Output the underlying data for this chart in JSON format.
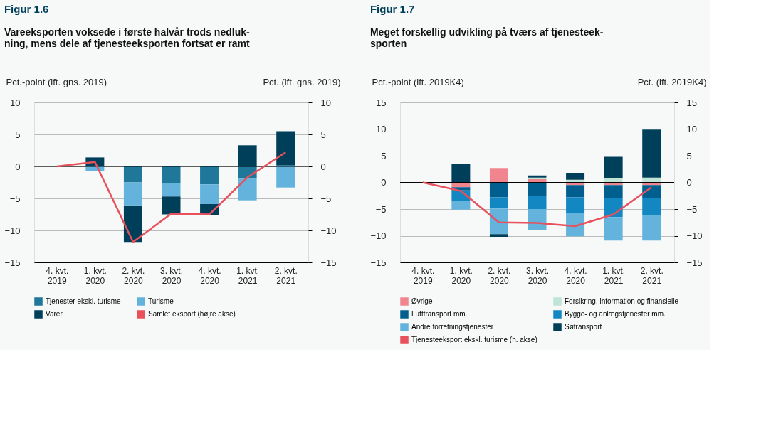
{
  "chart_data": [
    {
      "type": "bar",
      "stacked": true,
      "title": "Figur 1.6",
      "subtitle": "Vareeksporten voksede i første halvår trods nedluk-\nning, mens dele af tjenesteeksporten fortsat er ramt",
      "ylabel": "Pct.-point (ift. gns. 2019)",
      "y2label": "Pct. (ift. gns. 2019)",
      "categories": [
        "4. kvt. 2019",
        "1. kvt. 2020",
        "2. kvt. 2020",
        "3. kvt. 2020",
        "4. kvt. 2020",
        "1. kvt. 2021",
        "2. kvt. 2021"
      ],
      "ylim": [
        -15,
        10
      ],
      "yticks": [
        -15,
        -10,
        -5,
        0,
        5,
        10
      ],
      "y2lim": [
        -15,
        10
      ],
      "y2ticks": [
        -15,
        -10,
        -5,
        0,
        5,
        10
      ],
      "grid": "y",
      "legend": "bottom",
      "ref_lines": [
        {
          "axis": "y",
          "value": 0,
          "color": "#000000"
        }
      ],
      "series": [
        {
          "name": "Tjenester ekskl. turisme",
          "color": "#1f7799",
          "values": [
            null,
            null,
            -2.5,
            -2.6,
            -2.8,
            -1.9,
            0.2
          ]
        },
        {
          "name": "Turisme",
          "color": "#63b3dc",
          "values": [
            null,
            -0.7,
            -3.6,
            -2.1,
            -3.1,
            -3.4,
            -3.3
          ]
        },
        {
          "name": "Varer",
          "color": "#003f5a",
          "values": [
            null,
            1.4,
            -5.7,
            -2.8,
            -1.7,
            3.3,
            5.3
          ]
        },
        {
          "name": "Samlet eksport (højre akse)",
          "color": "#e8505b",
          "type": "line",
          "axis": "y2",
          "values": [
            0,
            0.7,
            -11.8,
            -7.4,
            -7.5,
            -1.7,
            2.2
          ]
        }
      ]
    },
    {
      "type": "bar",
      "stacked": true,
      "title": "Figur 1.7",
      "subtitle": "Meget forskellig udvikling på tværs af tjenesteek-\nsporten",
      "ylabel": "Pct.-point (ift. 2019K4)",
      "y2label": "Pct. (ift. 2019K4)",
      "categories": [
        "4. kvt. 2019",
        "1. kvt. 2020",
        "2. kvt. 2020",
        "3. kvt. 2020",
        "4. kvt. 2020",
        "1. kvt. 2021",
        "2. kvt. 2021"
      ],
      "ylim": [
        -15,
        15
      ],
      "yticks": [
        -15,
        -10,
        -5,
        0,
        5,
        10,
        15
      ],
      "y2lim": [
        -15,
        15
      ],
      "y2ticks": [
        -15,
        -10,
        -5,
        0,
        5,
        10,
        15
      ],
      "grid": "y",
      "legend": "bottom",
      "ref_lines": [
        {
          "axis": "y",
          "value": 0,
          "color": "#000000"
        }
      ],
      "series": [
        {
          "name": "Øvrige",
          "color": "#f08590",
          "values": [
            null,
            -0.9,
            2.7,
            0.6,
            -0.5,
            -0.5,
            -0.5
          ]
        },
        {
          "name": "Forsikring, information og finansielle",
          "color": "#c0e4d6",
          "values": [
            null,
            null,
            null,
            0.3,
            0.5,
            0.8,
            0.9
          ]
        },
        {
          "name": "Lufttransport mm.",
          "color": "#005f8f",
          "values": [
            null,
            -0.6,
            -2.8,
            -2.5,
            -2.3,
            -2.5,
            -2.5
          ]
        },
        {
          "name": "Bygge- og anlægstjenester mm.",
          "color": "#1287c2",
          "values": [
            null,
            -1.9,
            -2.1,
            -2.5,
            -3,
            -3.5,
            -3.2
          ]
        },
        {
          "name": "Andre forretningstjenester",
          "color": "#63b3dc",
          "values": [
            null,
            -1.7,
            -4.8,
            -3.9,
            -4.3,
            -4.4,
            -4.7
          ]
        },
        {
          "name": "Søtransport",
          "color": "#003f5a",
          "values": [
            null,
            3.4,
            -0.5,
            0.4,
            1.3,
            4,
            9
          ]
        },
        {
          "name": "Tjenesteeksport ekskl. turisme (h. akse)",
          "color": "#e8505b",
          "type": "line",
          "axis": "y2",
          "values": [
            0,
            -1.6,
            -7.5,
            -7.6,
            -8.2,
            -6,
            -0.9
          ]
        }
      ]
    }
  ]
}
